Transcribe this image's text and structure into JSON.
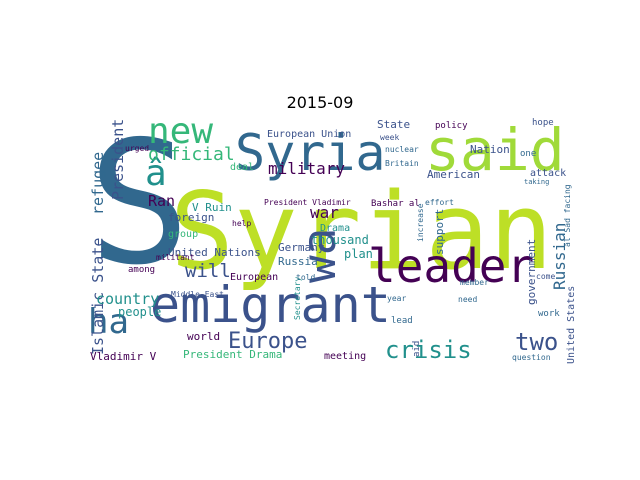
{
  "title": "2015-09",
  "palette": {
    "deep_purple": "#440154",
    "dark_blue": "#3b528b",
    "slate": "#31688e",
    "teal": "#21908c",
    "green": "#35b779",
    "lime": "#a0da39",
    "yellow_green": "#bddf26"
  },
  "words": [
    "Syrian",
    "emigrant",
    "S",
    "said",
    "Syria",
    "new",
    "leader",
    "wa",
    "ha",
    "â",
    "crisis",
    "two",
    "Europe",
    "official",
    "military",
    "Islamic State",
    "refugee",
    "President",
    "country",
    "Russian",
    "war",
    "will",
    "Ran",
    "United Nations",
    "government",
    "support",
    "European Union",
    "thousand",
    "plan",
    "foreign",
    "Germany",
    "Russia",
    "United States",
    "people",
    "world",
    "Vladimir V",
    "President Drama",
    "meeting",
    "Middle East",
    "European",
    "American",
    "Nation",
    "State",
    "attack",
    "hope",
    "week",
    "policy",
    "nuclear",
    "Britain",
    "member",
    "question",
    "work",
    "deal",
    "group",
    "militant",
    "help",
    "among",
    "year",
    "need",
    "lead",
    "President Vladimir",
    "Bashar al",
    "V Ruin",
    "Drama",
    "aid",
    "increase",
    "come",
    "one",
    "urged",
    "effort",
    "Secretary",
    "told",
    "taking",
    "al Sad facing"
  ]
}
